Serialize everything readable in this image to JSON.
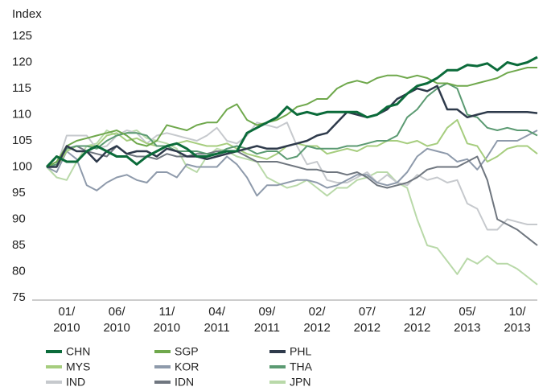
{
  "chart_data": {
    "type": "line",
    "y_label": "Index",
    "categories": [
      null,
      null,
      "01/\n2010",
      null,
      null,
      null,
      null,
      "06/\n2010",
      null,
      null,
      null,
      null,
      "11/\n2010",
      null,
      null,
      null,
      null,
      "04/\n2011",
      null,
      null,
      null,
      null,
      "09/\n2011",
      null,
      null,
      null,
      null,
      "02/\n2012",
      null,
      null,
      null,
      null,
      "07/\n2012",
      null,
      null,
      null,
      null,
      "12/\n2012",
      null,
      null,
      null,
      null,
      "05/\n2013",
      null,
      null,
      null,
      null,
      "10/\n2013",
      null,
      null
    ],
    "ylim": [
      75,
      125
    ],
    "yticks": [
      75,
      80,
      85,
      90,
      95,
      100,
      105,
      110,
      115,
      120,
      125
    ],
    "grid": false,
    "series": [
      {
        "name": "CHN",
        "color": "#0b6b3a",
        "width": 3,
        "values": [
          100,
          102,
          101,
          101,
          103,
          104,
          103,
          102,
          102,
          100.5,
          102,
          103,
          104,
          104.5,
          103.5,
          102,
          102,
          102.5,
          103,
          103,
          106.5,
          107.5,
          108.5,
          109.5,
          111.5,
          110,
          110.5,
          110,
          110.5,
          110.5,
          110.5,
          110.5,
          109.5,
          110,
          111.5,
          112,
          114,
          115.5,
          116,
          117,
          118.5,
          118.5,
          119.5,
          119.3,
          119.8,
          118.5,
          120,
          119.5,
          120,
          121
        ]
      },
      {
        "name": "MYS",
        "color": "#a6cd7e",
        "width": 2,
        "values": [
          100,
          100,
          103,
          104,
          104,
          104,
          106,
          106.5,
          105,
          105.5,
          104.5,
          104,
          104,
          104.5,
          105,
          104.5,
          104,
          104,
          104.5,
          103.5,
          102.5,
          102,
          101.5,
          102.5,
          104,
          104.5,
          104,
          104,
          102.5,
          103,
          103.5,
          103,
          104,
          104,
          105,
          105,
          104.5,
          105,
          104,
          104.5,
          107.5,
          109,
          104.5,
          104,
          101,
          102,
          103.5,
          104,
          104,
          102.5
        ]
      },
      {
        "name": "IND",
        "color": "#c6c9cd",
        "width": 2,
        "values": [
          100,
          100,
          106,
          106,
          106,
          103.5,
          104,
          106,
          107,
          106.5,
          104.5,
          106,
          106.5,
          106,
          105.5,
          105,
          106,
          107.5,
          105,
          104.5,
          106,
          108.5,
          108,
          107.5,
          108.5,
          104,
          100.5,
          101,
          97.5,
          97,
          97,
          98,
          99,
          97,
          98.5,
          97,
          96.5,
          98.5,
          97.5,
          98,
          97,
          97.5,
          93,
          92,
          88,
          88,
          90,
          89.5,
          89,
          89
        ]
      },
      {
        "name": "SGP",
        "color": "#6fa84c",
        "width": 2,
        "values": [
          100,
          101,
          104,
          105,
          105.5,
          106,
          106.5,
          107,
          106,
          104.5,
          104,
          105,
          108,
          107.5,
          107,
          108,
          108.5,
          108.5,
          111,
          112,
          109,
          108,
          108.5,
          109,
          110,
          111.5,
          112,
          113,
          113,
          115,
          116,
          116.5,
          116,
          117,
          117.5,
          117.5,
          117,
          117.5,
          117,
          116,
          116,
          115.5,
          115.5,
          116,
          116.5,
          117,
          118,
          118.5,
          119,
          119
        ]
      },
      {
        "name": "KOR",
        "color": "#8e9aab",
        "width": 2,
        "values": [
          100,
          99,
          103,
          101.5,
          96.5,
          95.5,
          97,
          98,
          98.5,
          97.5,
          97,
          99,
          99,
          98,
          100.5,
          100,
          100,
          100,
          102,
          100.5,
          98,
          94.5,
          96.5,
          96.5,
          97,
          97.5,
          97.5,
          97,
          96,
          96.5,
          97.5,
          98.5,
          98.5,
          97,
          96.5,
          97,
          99,
          102,
          103.5,
          103,
          102.5,
          101,
          101.5,
          99.5,
          102,
          105,
          105,
          105,
          106,
          107
        ]
      },
      {
        "name": "IDN",
        "color": "#6f767f",
        "width": 2,
        "values": [
          100,
          100.5,
          103.5,
          104,
          103,
          102.5,
          102,
          104,
          102.5,
          102,
          102,
          101.5,
          102.5,
          102,
          102,
          102.5,
          102.5,
          103,
          103,
          103,
          102,
          101,
          101,
          101,
          100.5,
          100,
          99.5,
          99.5,
          99,
          99,
          98.5,
          99,
          98,
          96.5,
          96,
          96.5,
          97,
          98,
          99.5,
          100,
          100,
          100,
          101,
          102,
          97.5,
          90,
          89,
          88,
          86.5,
          85
        ]
      },
      {
        "name": "PHL",
        "color": "#2e3a4b",
        "width": 2.5,
        "values": [
          100,
          100,
          104,
          103,
          103,
          101,
          103,
          104,
          102.5,
          103,
          103,
          102,
          103.5,
          103,
          102,
          102,
          101.5,
          102,
          102.5,
          103,
          103.5,
          104,
          103.5,
          103.5,
          104,
          104.5,
          105,
          106,
          106.5,
          108.5,
          110.5,
          110,
          109.5,
          110,
          111,
          113,
          114,
          115,
          114.5,
          115.5,
          111,
          111,
          109.5,
          110,
          110.5,
          110.5,
          110.5,
          110.5,
          110.5,
          110.3
        ]
      },
      {
        "name": "THA",
        "color": "#5b9a72",
        "width": 2,
        "values": [
          100,
          100.5,
          103.5,
          104,
          104,
          103.5,
          105,
          106,
          106.5,
          106.5,
          106,
          104,
          104,
          103,
          103,
          103,
          102.5,
          102.5,
          103.5,
          104,
          103.5,
          102.5,
          103,
          103,
          101.5,
          102,
          104,
          103.5,
          103.5,
          103.5,
          104,
          104,
          104.5,
          105,
          105,
          106,
          109.5,
          111,
          113.5,
          115,
          116,
          115,
          110,
          109.5,
          107.5,
          107,
          107.5,
          107,
          107,
          106
        ]
      },
      {
        "name": "JPN",
        "color": "#b9d9a9",
        "width": 2,
        "values": [
          100,
          98,
          97.5,
          101,
          104,
          104.5,
          107,
          106,
          106.5,
          107,
          105.5,
          105,
          104.5,
          103.5,
          100,
          99,
          102,
          103.5,
          103,
          102,
          101.5,
          101,
          98,
          97,
          96,
          96.5,
          97.5,
          96,
          94.5,
          96,
          96,
          97.5,
          98,
          99,
          99,
          97,
          96,
          90,
          85,
          84.5,
          82,
          79.5,
          82.5,
          81.5,
          83,
          81.5,
          81.5,
          80.5,
          79,
          77.5
        ]
      }
    ]
  }
}
